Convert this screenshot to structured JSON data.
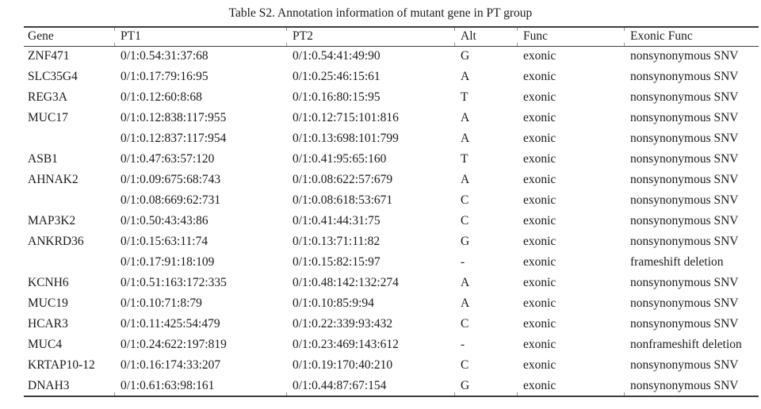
{
  "title": "Table S2. Annotation information of mutant gene in PT group",
  "colors": {
    "background": "#ffffff",
    "text": "#1a1a1a",
    "rule": "#3d3d3d",
    "tick": "#919191"
  },
  "table": {
    "columns": [
      "Gene",
      "PT1",
      "PT2",
      "Alt",
      "Func",
      "Exonic Func"
    ],
    "rows": [
      [
        "ZNF471",
        "0/1:0.54:31:37:68",
        "0/1:0.54:41:49:90",
        "G",
        "exonic",
        "nonsynonymous SNV"
      ],
      [
        "SLC35G4",
        "0/1:0.17:79:16:95",
        "0/1:0.25:46:15:61",
        "A",
        "exonic",
        "nonsynonymous SNV"
      ],
      [
        "REG3A",
        "0/1:0.12:60:8:68",
        "0/1:0.16:80:15:95",
        "T",
        "exonic",
        "nonsynonymous SNV"
      ],
      [
        "MUC17",
        "0/1:0.12:838:117:955",
        "0/1:0.12:715:101:816",
        "A",
        "exonic",
        "nonsynonymous SNV"
      ],
      [
        "",
        "0/1:0.12:837:117:954",
        "0/1:0.13:698:101:799",
        "A",
        "exonic",
        "nonsynonymous SNV"
      ],
      [
        "ASB1",
        "0/1:0.47:63:57:120",
        "0/1:0.41:95:65:160",
        "T",
        "exonic",
        "nonsynonymous SNV"
      ],
      [
        "AHNAK2",
        "0/1:0.09:675:68:743",
        "0/1:0.08:622:57:679",
        "A",
        "exonic",
        "nonsynonymous SNV"
      ],
      [
        "",
        "0/1:0.08:669:62:731",
        "0/1:0.08:618:53:671",
        "C",
        "exonic",
        "nonsynonymous SNV"
      ],
      [
        "MAP3K2",
        "0/1:0.50:43:43:86",
        "0/1:0.41:44:31:75",
        "C",
        "exonic",
        "nonsynonymous SNV"
      ],
      [
        "ANKRD36",
        "0/1:0.15:63:11:74",
        "0/1:0.13:71:11:82",
        "G",
        "exonic",
        "nonsynonymous SNV"
      ],
      [
        "",
        "0/1:0.17:91:18:109",
        "0/1:0.15:82:15:97",
        "-",
        "exonic",
        "frameshift deletion"
      ],
      [
        "KCNH6",
        "0/1:0.51:163:172:335",
        "0/1:0.48:142:132:274",
        "A",
        "exonic",
        "nonsynonymous SNV"
      ],
      [
        "MUC19",
        "0/1:0.10:71:8:79",
        "0/1:0.10:85:9:94",
        "A",
        "exonic",
        "nonsynonymous SNV"
      ],
      [
        "HCAR3",
        "0/1:0.11:425:54:479",
        "0/1:0.22:339:93:432",
        "C",
        "exonic",
        "nonsynonymous SNV"
      ],
      [
        "MUC4",
        "0/1:0.24:622:197:819",
        "0/1:0.23:469:143:612",
        "-",
        "exonic",
        "nonframeshift deletion"
      ],
      [
        "KRTAP10-12",
        "0/1:0.16:174:33:207",
        "0/1:0.19:170:40:210",
        "C",
        "exonic",
        "nonsynonymous SNV"
      ],
      [
        "DNAH3",
        "0/1:0.61:63:98:161",
        "0/1:0.44:87:67:154",
        "G",
        "exonic",
        "nonsynonymous SNV"
      ]
    ]
  }
}
